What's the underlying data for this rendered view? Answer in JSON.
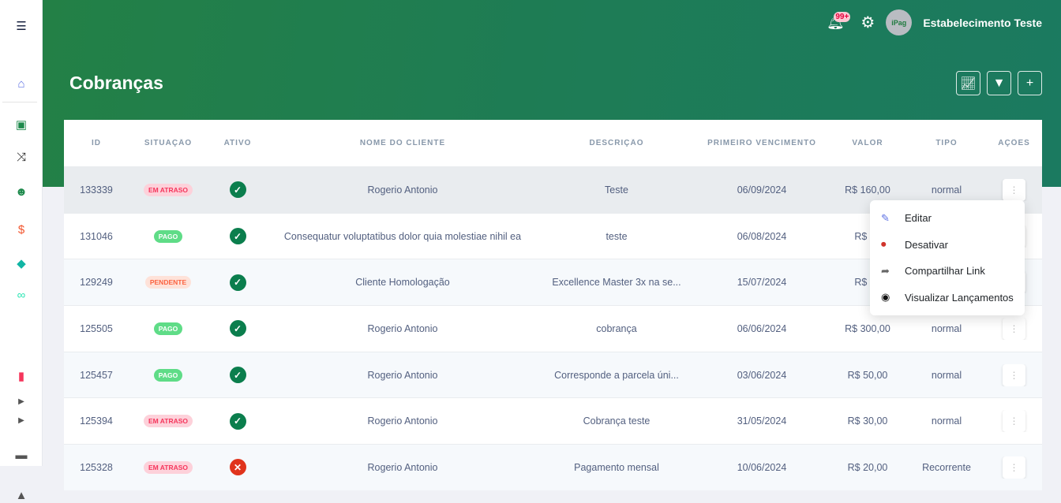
{
  "sidebar": {
    "items": [
      {
        "icon": "menu-icon",
        "glyph": "☰",
        "color": "#1a2340"
      },
      {
        "icon": "home-icon",
        "glyph": "⌂",
        "color": "#5e72e4"
      },
      {
        "icon": "money-icon",
        "glyph": "▣",
        "color": "#1e8a4c"
      },
      {
        "icon": "shuffle-icon",
        "glyph": "⤨",
        "color": "#222"
      },
      {
        "icon": "users-icon",
        "glyph": "☻",
        "color": "#1e8a4c"
      },
      {
        "icon": "hand-dollar-icon",
        "glyph": "$",
        "color": "#f2542d"
      },
      {
        "icon": "diamond-icon",
        "glyph": "◆",
        "color": "#11b5a4"
      },
      {
        "icon": "link-icon",
        "glyph": "∞",
        "color": "#2ee6b5"
      },
      {
        "icon": "pdf-file-icon",
        "glyph": "▮",
        "color": "#f5365c"
      },
      {
        "icon": "caret-right-icon",
        "glyph": "▶",
        "color": "#555"
      },
      {
        "icon": "caret-right-icon",
        "glyph": "▶",
        "color": "#555"
      },
      {
        "icon": "store-icon",
        "glyph": "▬",
        "color": "#555"
      },
      {
        "icon": "file-upload-icon",
        "glyph": "▲",
        "color": "#555"
      }
    ]
  },
  "topbar": {
    "notifications": "99+",
    "user_name": "Estabelecimento Teste",
    "avatar_text": "iPag"
  },
  "page": {
    "title": "Cobranças"
  },
  "table": {
    "headers": [
      "ID",
      "SITUAÇÃO",
      "ATIVO",
      "NOME DO CLIENTE",
      "DESCRIÇÃO",
      "PRIMEIRO VENCIMENTO",
      "VALOR",
      "TIPO",
      "AÇÕES"
    ],
    "rows": [
      {
        "id": "133339",
        "status": "EM ATRASO",
        "status_type": "atraso",
        "active": true,
        "client": "Rogerio Antonio",
        "description": "Teste",
        "due": "06/09/2024",
        "value": "R$ 160,00",
        "type": "normal"
      },
      {
        "id": "131046",
        "status": "PAGO",
        "status_type": "pago",
        "active": true,
        "client": "Consequatur voluptatibus dolor quia molestiae nihil ea",
        "description": "teste",
        "due": "06/08/2024",
        "value": "R$ 10",
        "type": ""
      },
      {
        "id": "129249",
        "status": "PENDENTE",
        "status_type": "pend",
        "active": true,
        "client": "Cliente Homologação",
        "description": "Excellence Master 3x na se...",
        "due": "15/07/2024",
        "value": "R$ 75",
        "type": ""
      },
      {
        "id": "125505",
        "status": "PAGO",
        "status_type": "pago",
        "active": true,
        "client": "Rogerio Antonio",
        "description": "cobrança",
        "due": "06/06/2024",
        "value": "R$ 300,00",
        "type": "normal"
      },
      {
        "id": "125457",
        "status": "PAGO",
        "status_type": "pago",
        "active": true,
        "client": "Rogerio Antonio",
        "description": "Corresponde a parcela úni...",
        "due": "03/06/2024",
        "value": "R$ 50,00",
        "type": "normal"
      },
      {
        "id": "125394",
        "status": "EM ATRASO",
        "status_type": "atraso",
        "active": true,
        "client": "Rogerio Antonio",
        "description": "Cobrança teste",
        "due": "31/05/2024",
        "value": "R$ 30,00",
        "type": "normal"
      },
      {
        "id": "125328",
        "status": "EM ATRASO",
        "status_type": "atraso",
        "active": false,
        "client": "Rogerio Antonio",
        "description": "Pagamento mensal",
        "due": "10/06/2024",
        "value": "R$ 20,00",
        "type": "Recorrente"
      }
    ]
  },
  "actions_menu": {
    "items": [
      {
        "label": "Editar",
        "icon": "edit-icon",
        "glyph": "✎",
        "color": "#5e72e4"
      },
      {
        "label": "Desativar",
        "icon": "stop-circle-icon",
        "glyph": "⏺",
        "color": "#d0342c"
      },
      {
        "label": "Compartilhar Link",
        "icon": "share-icon",
        "glyph": "➦",
        "color": "#666"
      },
      {
        "label": "Visualizar Lançamentos",
        "icon": "eye-icon",
        "glyph": "◉",
        "color": "#111"
      }
    ]
  }
}
